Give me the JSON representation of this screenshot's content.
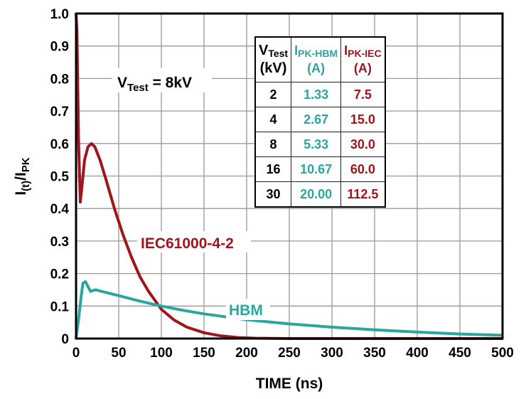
{
  "chart_data": {
    "type": "line",
    "title": "",
    "xlabel": "TIME (ns)",
    "ylabel_main": "I",
    "ylabel_sub1": "(t)",
    "ylabel_mid": "/I",
    "ylabel_sub2": "PK",
    "xlim": [
      0,
      500
    ],
    "ylim": [
      0,
      1.0
    ],
    "xticks": [
      "0",
      "50",
      "100",
      "150",
      "200",
      "250",
      "300",
      "350",
      "400",
      "450",
      "500"
    ],
    "yticks": [
      "0",
      "0.1",
      "0.2",
      "0.3",
      "0.4",
      "0.5",
      "0.6",
      "0.7",
      "0.8",
      "0.9",
      "1.0"
    ],
    "grid": true,
    "annotation": {
      "v": "V",
      "sub": "Test",
      "rest": " = 8kV"
    },
    "series": [
      {
        "name": "IEC61000-4-2",
        "color": "#a0141c",
        "x": [
          0,
          1,
          3,
          5,
          7,
          10,
          14,
          18,
          22,
          28,
          35,
          45,
          55,
          65,
          75,
          85,
          100,
          115,
          130,
          150,
          170,
          190,
          210,
          250,
          300,
          500
        ],
        "y": [
          1.0,
          0.95,
          0.6,
          0.42,
          0.47,
          0.55,
          0.59,
          0.6,
          0.59,
          0.55,
          0.49,
          0.4,
          0.32,
          0.25,
          0.19,
          0.145,
          0.09,
          0.057,
          0.035,
          0.018,
          0.008,
          0.003,
          0.001,
          0,
          0,
          0
        ]
      },
      {
        "name": "HBM",
        "color": "#2aa6a0",
        "x": [
          0,
          3,
          6,
          8,
          11,
          14,
          17,
          20,
          23,
          30,
          50,
          75,
          100,
          125,
          150,
          200,
          250,
          300,
          350,
          400,
          450,
          500
        ],
        "y": [
          0,
          0.06,
          0.13,
          0.17,
          0.175,
          0.16,
          0.145,
          0.148,
          0.15,
          0.145,
          0.132,
          0.115,
          0.1,
          0.087,
          0.076,
          0.058,
          0.045,
          0.035,
          0.027,
          0.02,
          0.014,
          0.01
        ]
      }
    ],
    "table": {
      "headers": [
        {
          "main": "V",
          "sub": "Test",
          "line2": "(kV)"
        },
        {
          "main": "I",
          "sub": "PK-HBM",
          "line2": "(A)"
        },
        {
          "main": "I",
          "sub": "PK-IEC",
          "line2": "(A)"
        }
      ],
      "rows": [
        [
          "2",
          "1.33",
          "7.5"
        ],
        [
          "4",
          "2.67",
          "15.0"
        ],
        [
          "8",
          "5.33",
          "30.0"
        ],
        [
          "16",
          "10.67",
          "60.0"
        ],
        [
          "30",
          "20.00",
          "112.5"
        ]
      ]
    },
    "legend": "inline labels"
  }
}
